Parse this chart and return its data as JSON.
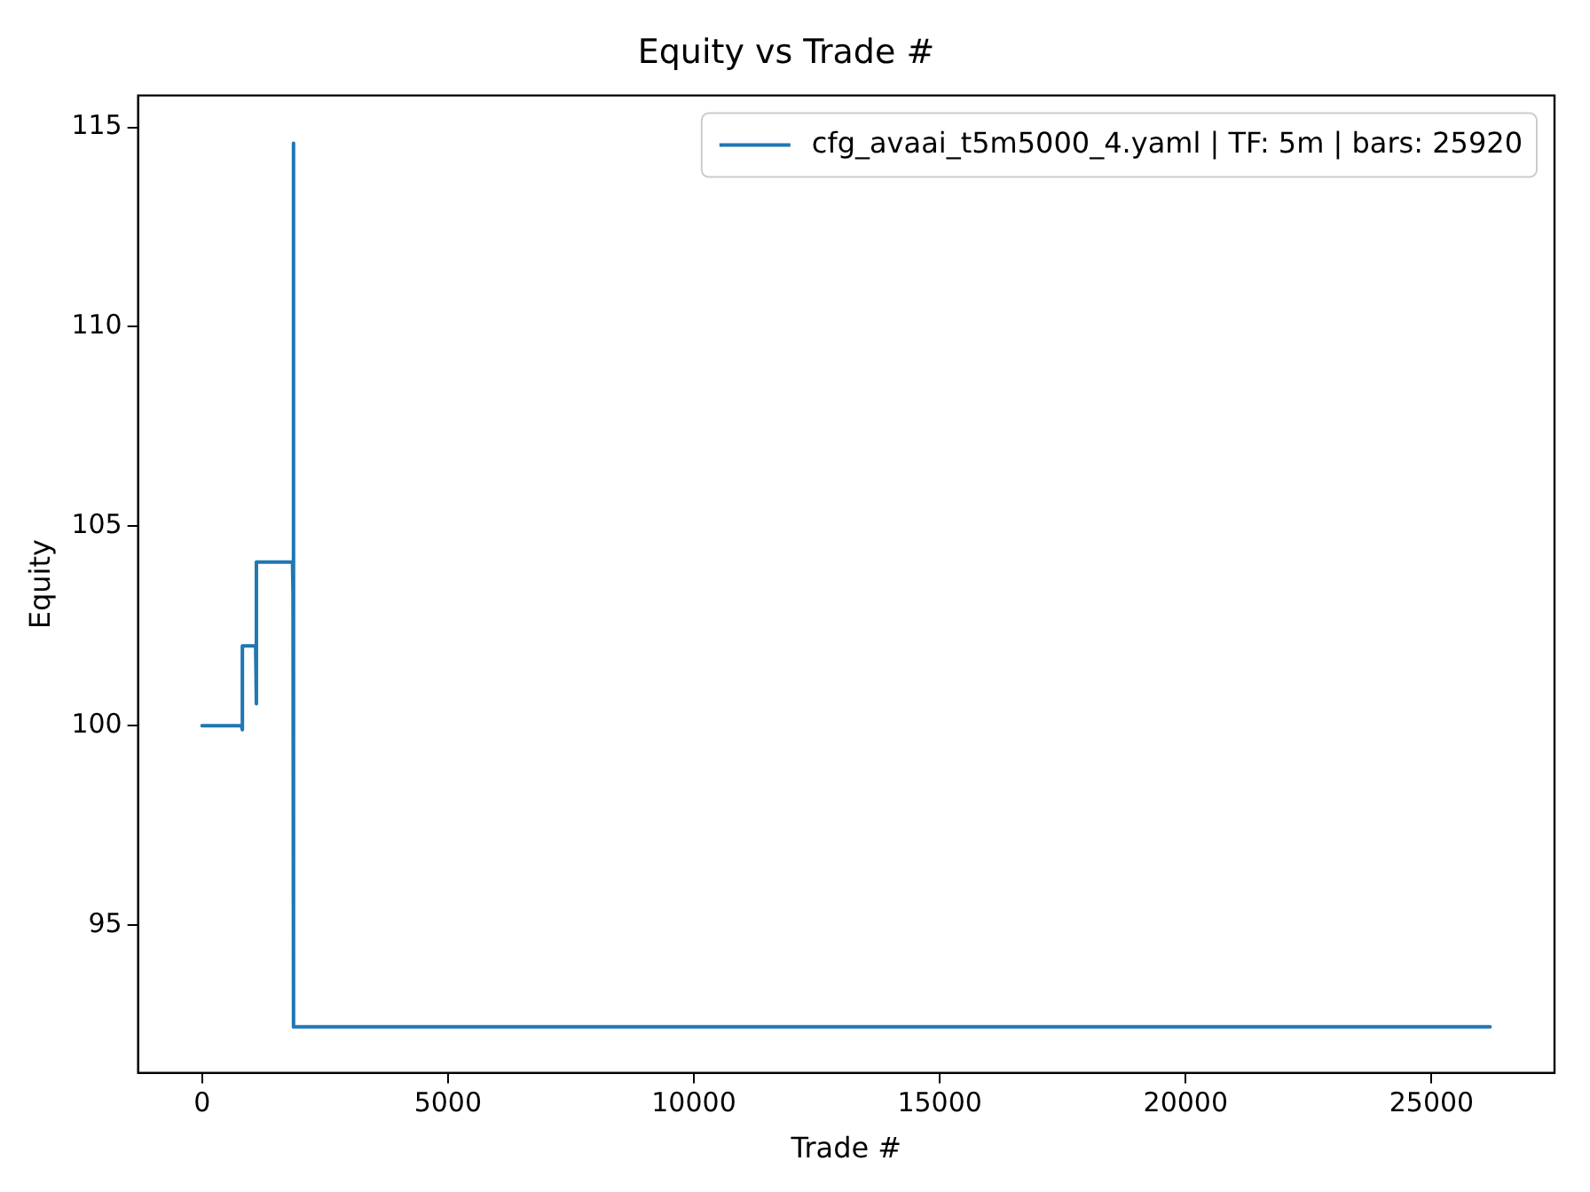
{
  "chart_data": {
    "type": "line",
    "title": "Equity vs Trade #",
    "xlabel": "Trade #",
    "ylabel": "Equity",
    "series": [
      {
        "name": "cfg_avaai_t5m5000_4.yaml | TF: 5m | bars: 25920",
        "color": "#1f77b4",
        "x": [
          0,
          800,
          815,
          825,
          1090,
          1100,
          1110,
          1840,
          1850,
          1855,
          1865,
          26190
        ],
        "values": [
          100,
          100,
          99.9,
          102,
          102,
          100.55,
          104.1,
          104.1,
          103.3,
          114.6,
          92.45,
          92.45
        ]
      }
    ],
    "xlim": [
      -1300,
      27500
    ],
    "xticks": [
      0,
      5000,
      10000,
      15000,
      20000,
      25000
    ],
    "ylim": [
      91.3,
      115.8
    ],
    "yticks": [
      95,
      100,
      105,
      110,
      115
    ],
    "grid": false,
    "legend": "top right",
    "marker": "none",
    "line_style": "solid"
  }
}
